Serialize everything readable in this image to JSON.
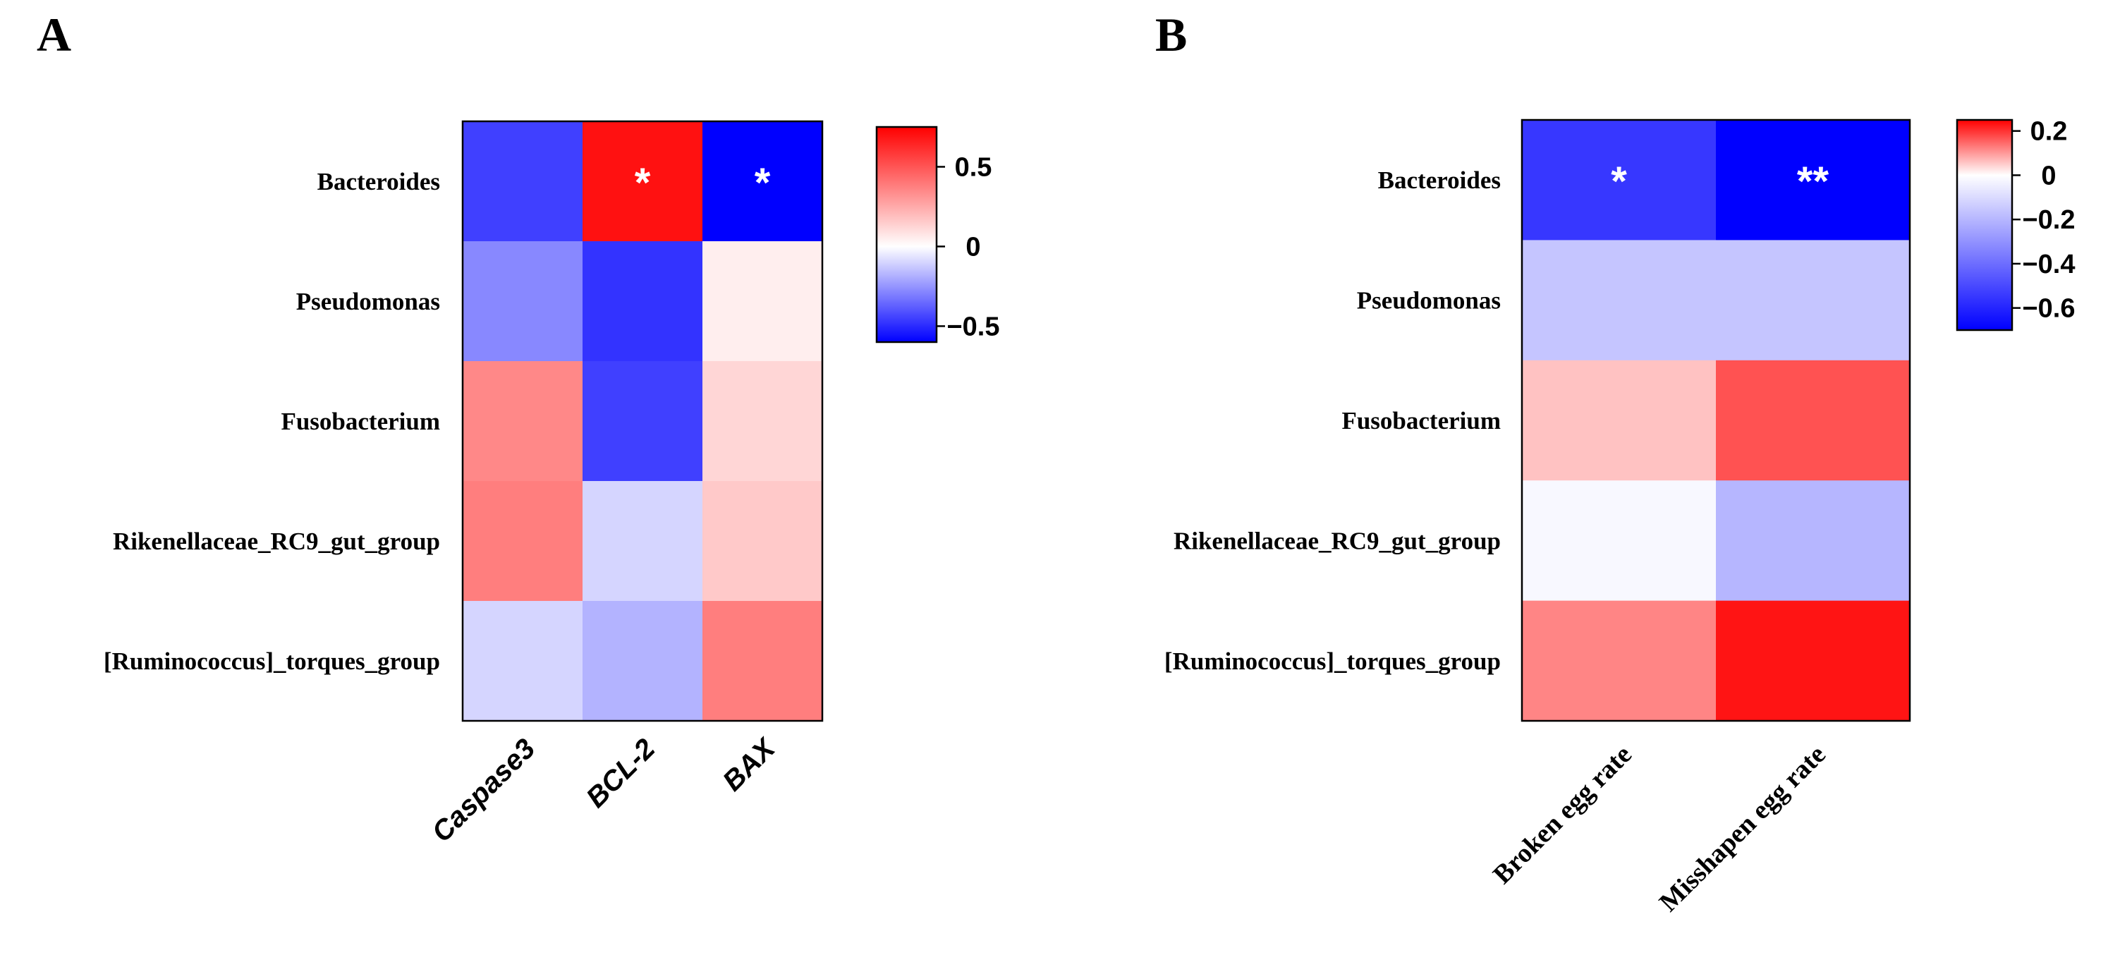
{
  "chart_data": [
    {
      "type": "heatmap",
      "panel": "A",
      "rows": [
        "Bacteroides",
        "Pseudomonas",
        "Fusobacterium",
        "Rikenellaceae_RC9_gut_group",
        "[Ruminococcus]_torques_group"
      ],
      "columns": [
        "Caspase3",
        "BCL-2",
        "BAX"
      ],
      "values": [
        [
          -0.45,
          0.7,
          -0.72
        ],
        [
          -0.28,
          -0.48,
          0.05
        ],
        [
          0.35,
          -0.45,
          0.12
        ],
        [
          0.38,
          -0.1,
          0.16
        ],
        [
          -0.1,
          -0.18,
          0.38
        ]
      ],
      "significance": [
        [
          "",
          "*",
          "*"
        ],
        [
          "",
          "",
          ""
        ],
        [
          "",
          "",
          ""
        ],
        [
          "",
          "",
          ""
        ],
        [
          "",
          "",
          ""
        ]
      ],
      "colorbar": {
        "min": -0.6,
        "max": 0.75,
        "ticks": [
          0.5,
          0,
          -0.5
        ],
        "tick_labels": [
          "0.5",
          "0",
          "−0.5"
        ]
      },
      "colors": {
        "low": "#0000ff",
        "mid": "#ffffff",
        "high": "#ff0000"
      }
    },
    {
      "type": "heatmap",
      "panel": "B",
      "rows": [
        "Bacteroides",
        "Pseudomonas",
        "Fusobacterium",
        "Rikenellaceae_RC9_gut_group",
        "[Ruminococcus]_torques_group"
      ],
      "columns": [
        "Broken egg rate",
        "Misshapen egg rate"
      ],
      "values": [
        [
          -0.55,
          -0.7
        ],
        [
          -0.16,
          -0.16
        ],
        [
          0.06,
          0.17
        ],
        [
          -0.02,
          -0.2
        ],
        [
          0.12,
          0.23
        ]
      ],
      "significance": [
        [
          "*",
          "**"
        ],
        [
          "",
          ""
        ],
        [
          "",
          ""
        ],
        [
          "",
          ""
        ],
        [
          "",
          ""
        ]
      ],
      "colorbar": {
        "min": -0.7,
        "max": 0.25,
        "ticks": [
          0.2,
          0,
          -0.2,
          -0.4,
          -0.6
        ],
        "tick_labels": [
          "0.2",
          "0",
          "−0.2",
          "−0.4",
          "−0.6"
        ]
      },
      "colors": {
        "low": "#0000ff",
        "mid": "#ffffff",
        "high": "#ff0000"
      }
    }
  ]
}
